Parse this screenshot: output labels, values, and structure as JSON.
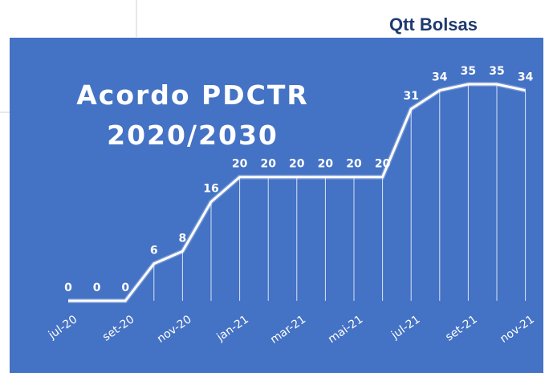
{
  "header": {
    "title": "Qtt Bolsas"
  },
  "chart_data": {
    "type": "line",
    "title": [
      "Acordo PDCTR",
      "2020/2030"
    ],
    "categories": [
      "jul-20",
      null,
      "set-20",
      null,
      "nov-20",
      null,
      "jan-21",
      null,
      "mar-21",
      null,
      "mai-21",
      null,
      "jul-21",
      null,
      "set-21",
      null,
      "nov-21"
    ],
    "values": [
      0,
      0,
      0,
      6,
      8,
      16,
      20,
      20,
      20,
      20,
      20,
      20,
      31,
      34,
      35,
      35,
      34
    ],
    "color": "#ffffff",
    "background": "#4472c4",
    "drop_lines": true
  }
}
